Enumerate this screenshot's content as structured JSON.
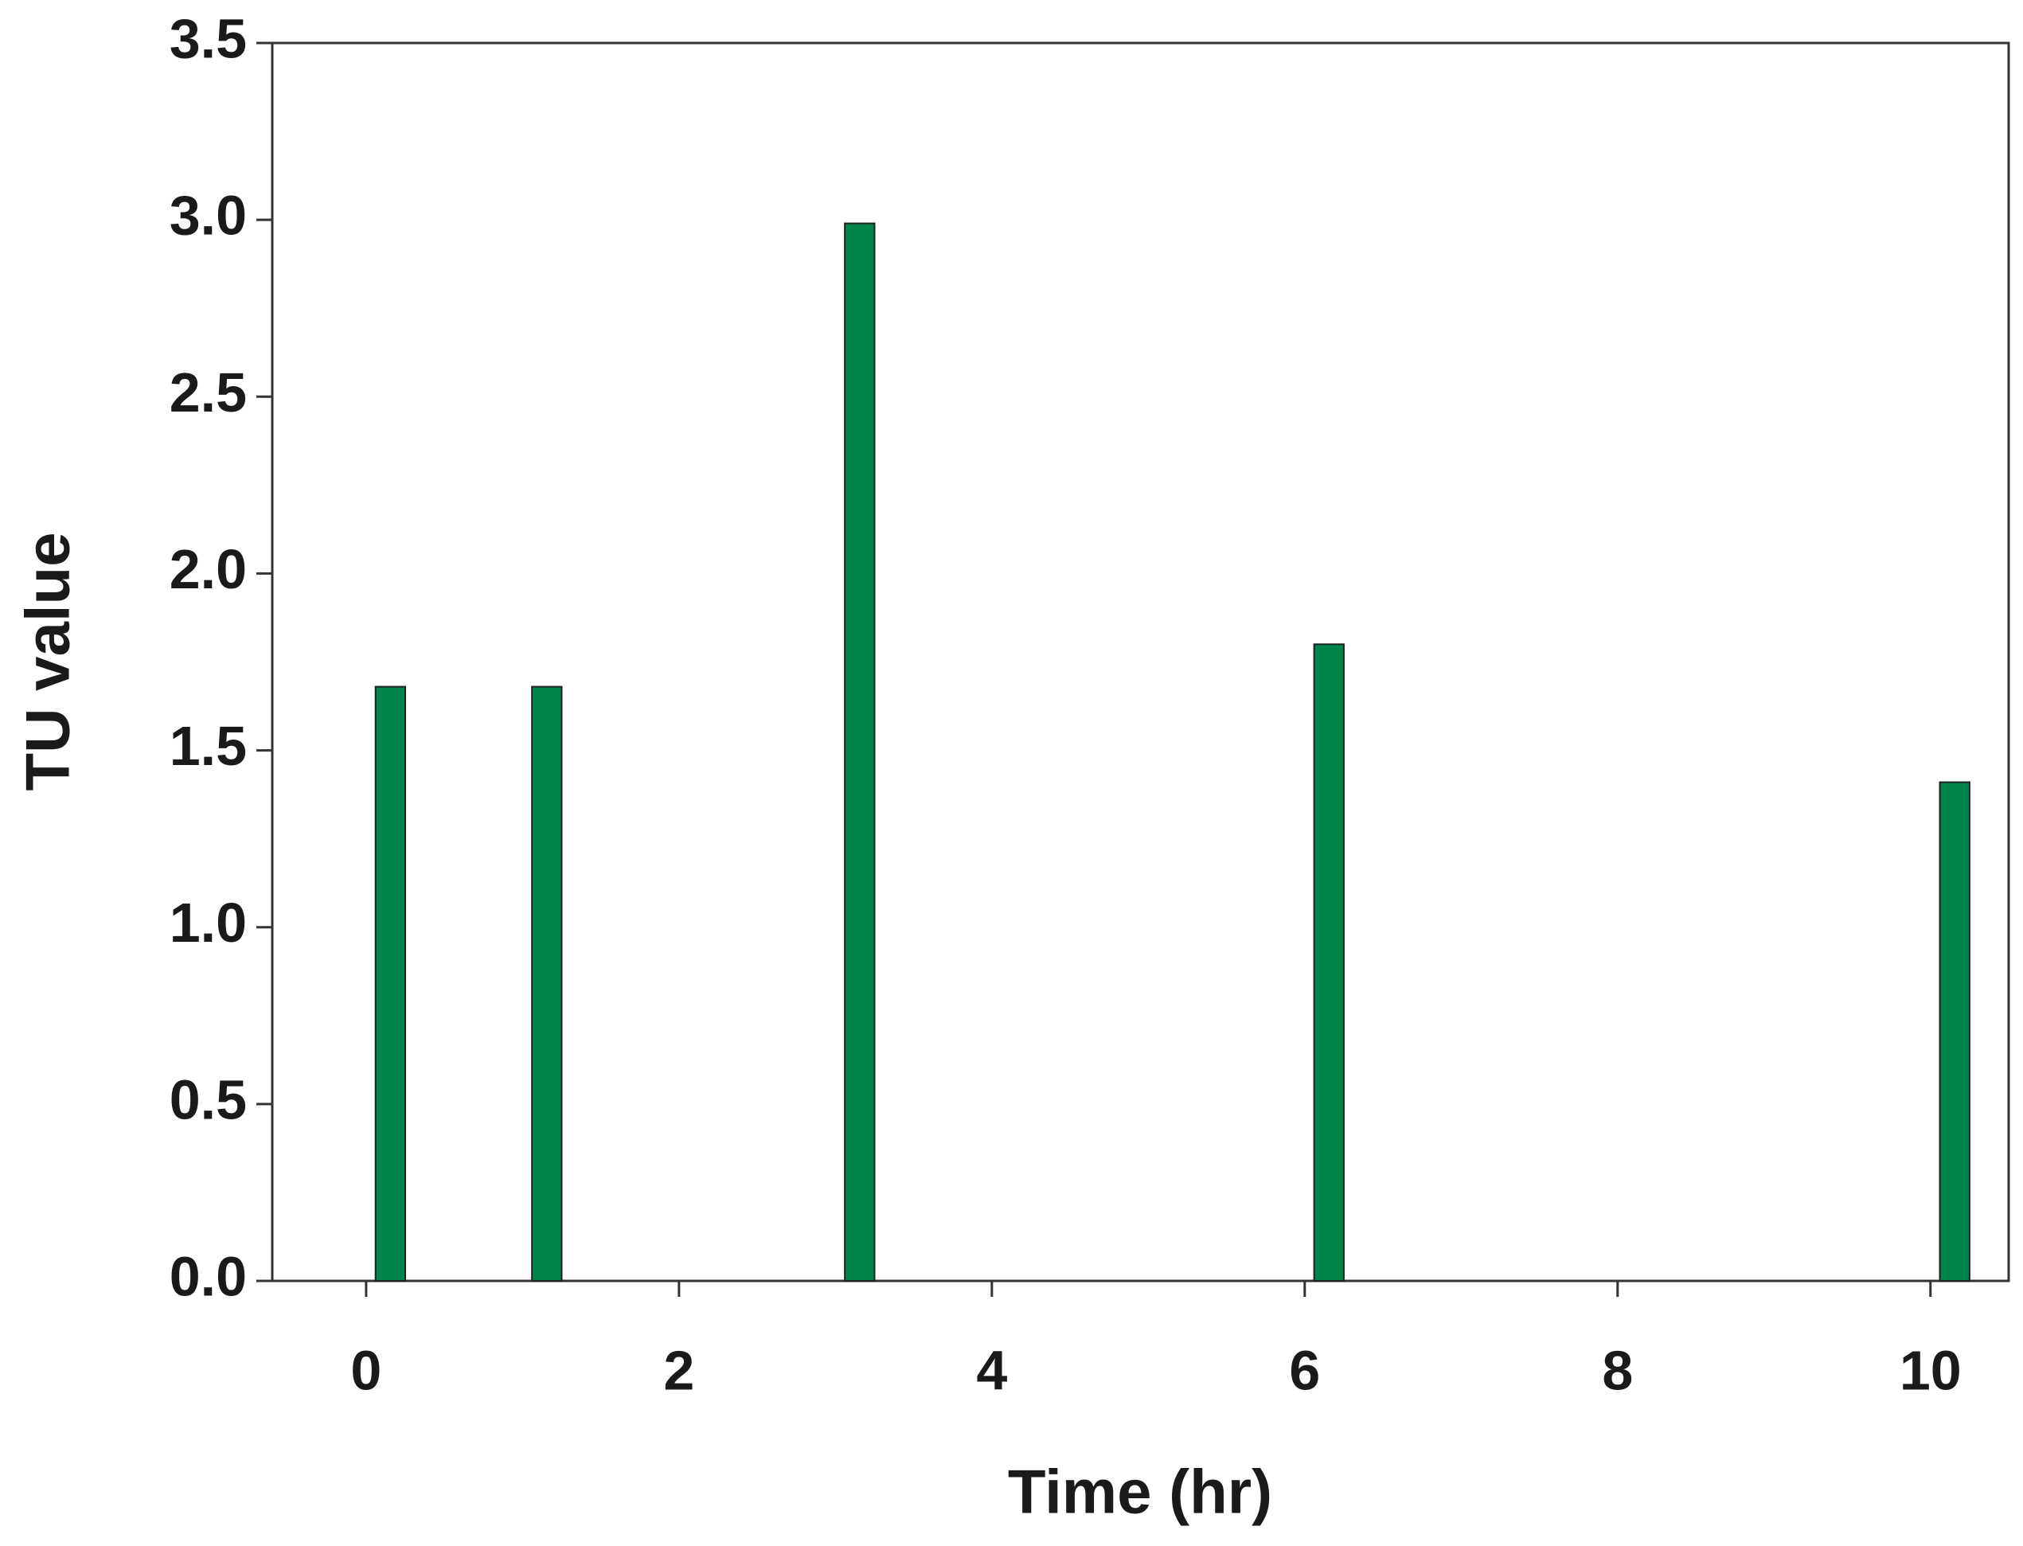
{
  "chart_data": {
    "type": "bar",
    "x_label": "Time (hr)",
    "y_label": "TU value",
    "x": [
      0,
      1,
      3,
      6,
      10
    ],
    "values": [
      1.68,
      1.68,
      2.99,
      1.8,
      1.41
    ],
    "color": "#00844a",
    "xlim": [
      -0.6,
      10.5
    ],
    "xticks": [
      0,
      2,
      4,
      6,
      8,
      10
    ],
    "ylim": [
      0,
      3.5
    ],
    "yticks": [
      {
        "value": 0,
        "label": "0.0"
      },
      0.5,
      {
        "value": 1,
        "label": "1.0"
      },
      1.5,
      {
        "value": 2,
        "label": "2.0"
      },
      2.5,
      {
        "value": 3,
        "label": "3.0"
      },
      3.5
    ],
    "grid": false
  }
}
